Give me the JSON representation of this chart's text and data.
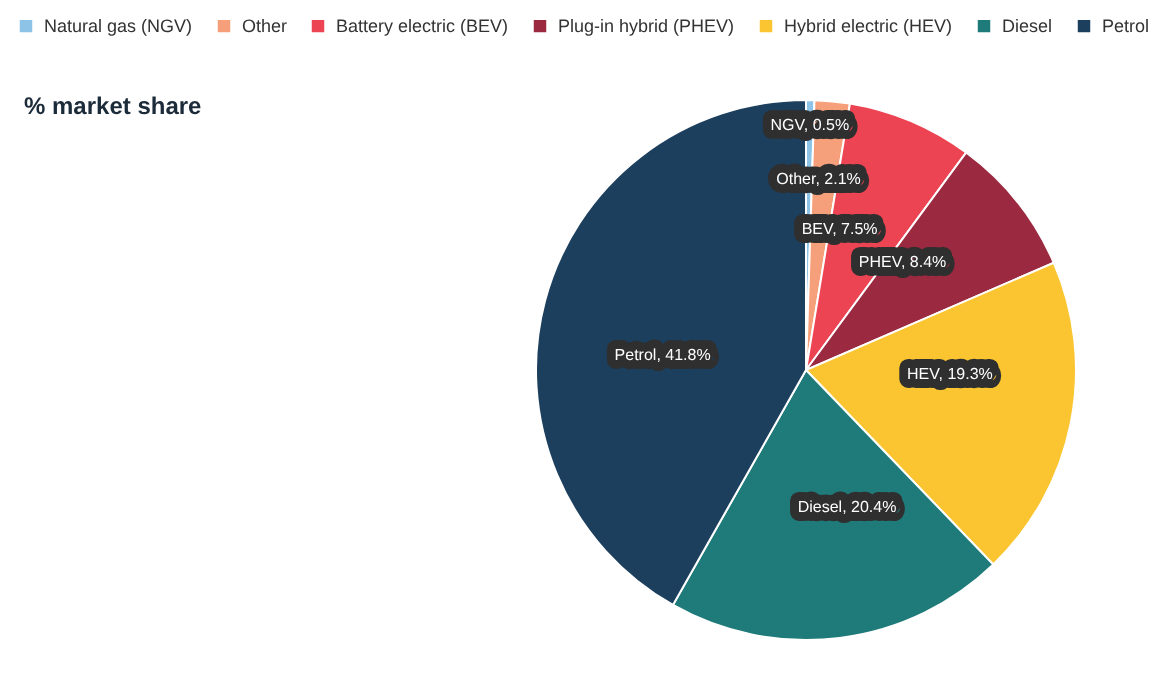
{
  "chart_data": {
    "type": "pie",
    "title": "% market share",
    "categories": [
      "Natural gas (NGV)",
      "Other",
      "Battery electric (BEV)",
      "Plug-in hybrid (PHEV)",
      "Hybrid electric (HEV)",
      "Diesel",
      "Petrol"
    ],
    "values": [
      0.5,
      2.1,
      7.5,
      8.4,
      19.3,
      20.4,
      41.8
    ],
    "colors": [
      "#8ec3e8",
      "#f5a07a",
      "#ec4452",
      "#9b2a40",
      "#fbc531",
      "#1f7a7a",
      "#1c3f5e"
    ],
    "value_labels": [
      "NGV, 0.5%",
      "Other, 2.1%",
      "BEV, 7.5%",
      "PHEV, 8.4%",
      "HEV, 19.3%",
      "Diesel, 20.4%",
      "Petrol, 41.8%"
    ],
    "legend": "top"
  }
}
